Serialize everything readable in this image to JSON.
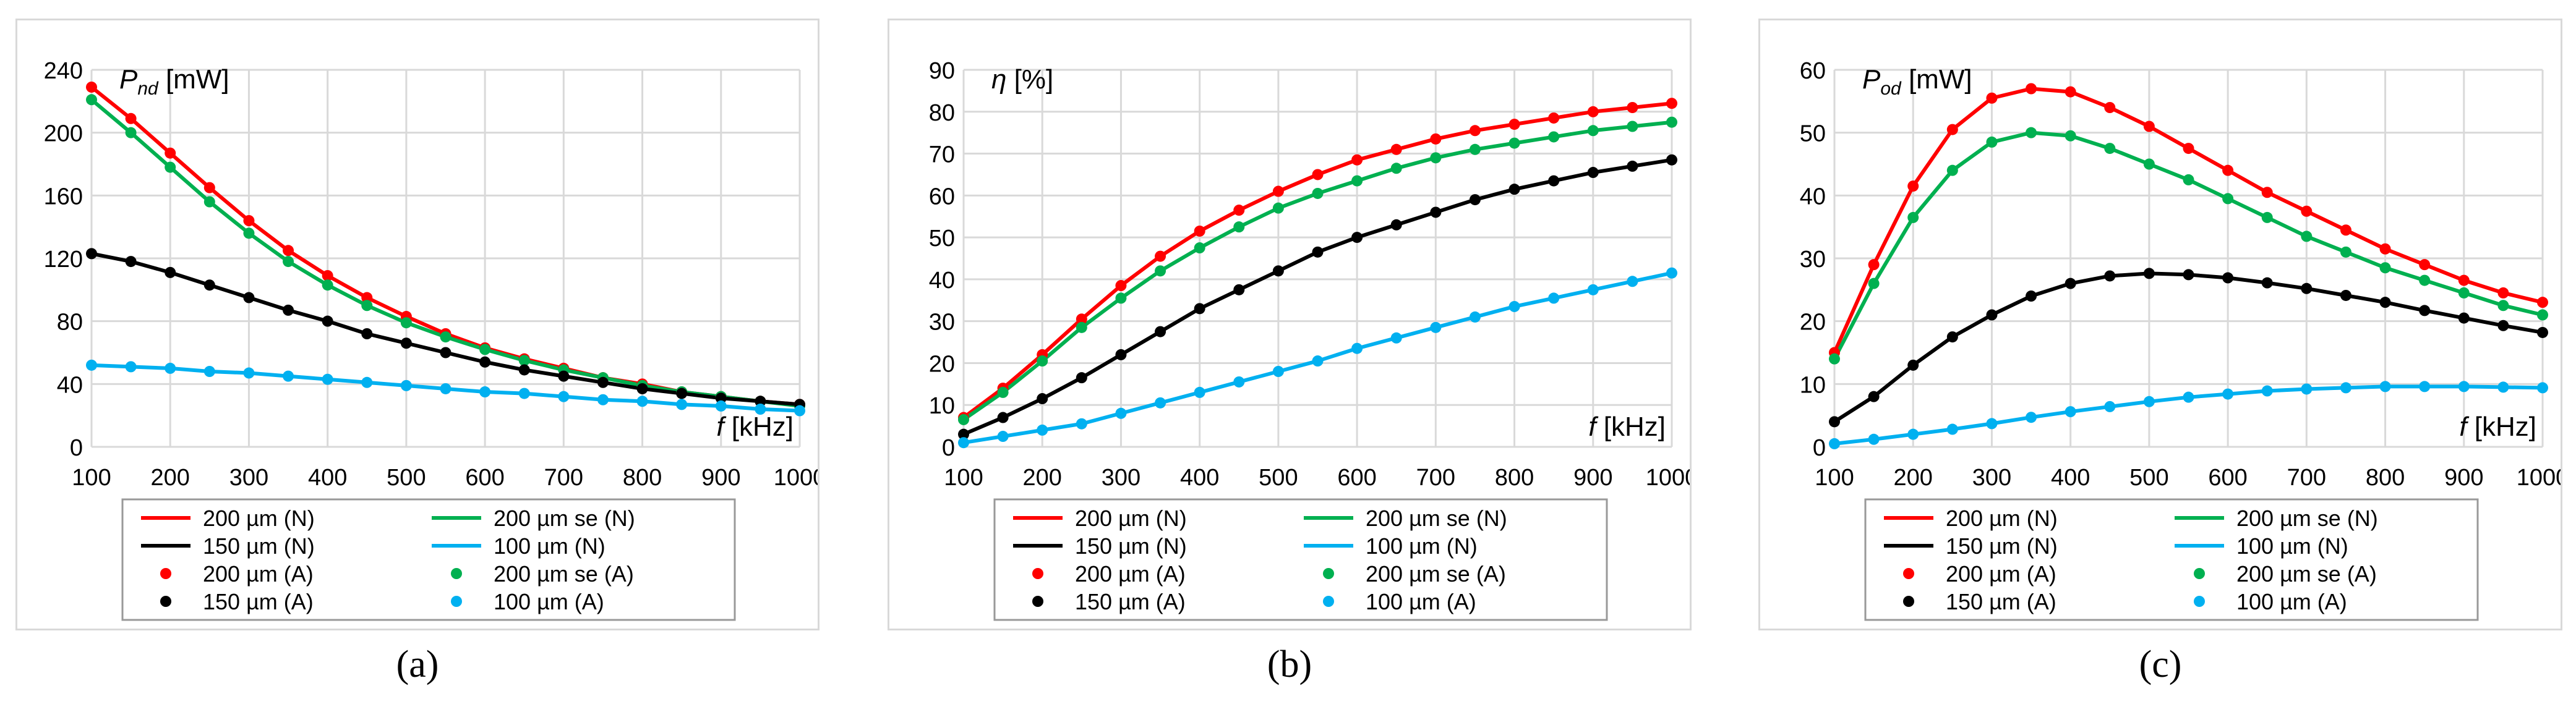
{
  "colors": {
    "red": "#ff0000",
    "green": "#00b050",
    "black": "#000000",
    "cyan": "#00b0f0",
    "grid": "#d9d9d9"
  },
  "panel_labels": [
    "(a)",
    "(b)",
    "(c)"
  ],
  "chart_data": [
    {
      "type": "line",
      "ylabel_main": "P",
      "ylabel_sub": "nd",
      "ylabel_unit": " [mW]",
      "xlabel_main": "f",
      "xlabel_unit": " [kHz]",
      "xlim": [
        100,
        1000
      ],
      "ylim": [
        0,
        240
      ],
      "xticks": [
        100,
        200,
        300,
        400,
        500,
        600,
        700,
        800,
        900,
        1000
      ],
      "yticks": [
        0,
        40,
        80,
        120,
        160,
        200,
        240
      ],
      "grid": true,
      "legend": "bottom",
      "x": [
        100,
        150,
        200,
        250,
        300,
        350,
        400,
        450,
        500,
        550,
        600,
        650,
        700,
        750,
        800,
        850,
        900,
        950,
        1000
      ],
      "series": [
        {
          "name": "200 µm (N)",
          "style": "line",
          "color": "red",
          "values": [
            229,
            209,
            187,
            165,
            144,
            125,
            109,
            95,
            83,
            72,
            63,
            56,
            50,
            44,
            40,
            35,
            32,
            29,
            27
          ]
        },
        {
          "name": "200 µm se (N)",
          "style": "line",
          "color": "green",
          "values": [
            221,
            200,
            178,
            156,
            136,
            118,
            103,
            90,
            79,
            70,
            62,
            55,
            49,
            44,
            39,
            35,
            32,
            29,
            26
          ]
        },
        {
          "name": "150 µm (N)",
          "style": "line",
          "color": "black",
          "values": [
            123,
            118,
            111,
            103,
            95,
            87,
            80,
            72,
            66,
            60,
            54,
            49,
            45,
            41,
            37,
            34,
            31,
            29,
            27
          ]
        },
        {
          "name": "100 µm (N)",
          "style": "line",
          "color": "cyan",
          "values": [
            52,
            51,
            50,
            48,
            47,
            45,
            43,
            41,
            39,
            37,
            35,
            34,
            32,
            30,
            29,
            27,
            26,
            24,
            23
          ]
        },
        {
          "name": "200 µm (A)",
          "style": "points",
          "color": "red",
          "values": [
            229,
            209,
            187,
            165,
            144,
            125,
            109,
            95,
            83,
            72,
            63,
            56,
            50,
            44,
            40,
            35,
            32,
            29,
            27
          ]
        },
        {
          "name": "200 µm se (A)",
          "style": "points",
          "color": "green",
          "values": [
            221,
            200,
            178,
            156,
            136,
            118,
            103,
            90,
            79,
            70,
            62,
            55,
            49,
            44,
            39,
            35,
            32,
            29,
            26
          ]
        },
        {
          "name": "150 µm (A)",
          "style": "points",
          "color": "black",
          "values": [
            123,
            118,
            111,
            103,
            95,
            87,
            80,
            72,
            66,
            60,
            54,
            49,
            45,
            41,
            37,
            34,
            31,
            29,
            27
          ]
        },
        {
          "name": "100 µm (A)",
          "style": "points",
          "color": "cyan",
          "values": [
            52,
            51,
            50,
            48,
            47,
            45,
            43,
            41,
            39,
            37,
            35,
            34,
            32,
            30,
            29,
            27,
            26,
            24,
            23
          ]
        }
      ]
    },
    {
      "type": "line",
      "ylabel_main": "η",
      "ylabel_sub": "",
      "ylabel_unit": " [%]",
      "xlabel_main": "f",
      "xlabel_unit": " [kHz]",
      "xlim": [
        100,
        1000
      ],
      "ylim": [
        0,
        90
      ],
      "xticks": [
        100,
        200,
        300,
        400,
        500,
        600,
        700,
        800,
        900,
        1000
      ],
      "yticks": [
        0,
        10,
        20,
        30,
        40,
        50,
        60,
        70,
        80,
        90
      ],
      "grid": true,
      "legend": "bottom",
      "x": [
        100,
        150,
        200,
        250,
        300,
        350,
        400,
        450,
        500,
        550,
        600,
        650,
        700,
        750,
        800,
        850,
        900,
        950,
        1000
      ],
      "series": [
        {
          "name": "200 µm (N)",
          "style": "line",
          "color": "red",
          "values": [
            7,
            14,
            22,
            30.5,
            38.5,
            45.5,
            51.5,
            56.5,
            61,
            65,
            68.5,
            71,
            73.5,
            75.5,
            77,
            78.5,
            80,
            81,
            82
          ]
        },
        {
          "name": "200 µm se (N)",
          "style": "line",
          "color": "green",
          "values": [
            6.5,
            13,
            20.5,
            28.5,
            35.5,
            42,
            47.5,
            52.5,
            57,
            60.5,
            63.5,
            66.5,
            69,
            71,
            72.5,
            74,
            75.5,
            76.5,
            77.5
          ]
        },
        {
          "name": "150 µm (N)",
          "style": "line",
          "color": "black",
          "values": [
            3,
            7,
            11.5,
            16.5,
            22,
            27.5,
            33,
            37.5,
            42,
            46.5,
            50,
            53,
            56,
            59,
            61.5,
            63.5,
            65.5,
            67,
            68.5
          ]
        },
        {
          "name": "100 µm (N)",
          "style": "line",
          "color": "cyan",
          "values": [
            1,
            2.5,
            4,
            5.5,
            8,
            10.5,
            13,
            15.5,
            18,
            20.5,
            23.5,
            26,
            28.5,
            31,
            33.5,
            35.5,
            37.5,
            39.5,
            41.5
          ]
        },
        {
          "name": "200 µm (A)",
          "style": "points",
          "color": "red",
          "values": [
            7,
            14,
            22,
            30.5,
            38.5,
            45.5,
            51.5,
            56.5,
            61,
            65,
            68.5,
            71,
            73.5,
            75.5,
            77,
            78.5,
            80,
            81,
            82
          ]
        },
        {
          "name": "200 µm se (A)",
          "style": "points",
          "color": "green",
          "values": [
            6.5,
            13,
            20.5,
            28.5,
            35.5,
            42,
            47.5,
            52.5,
            57,
            60.5,
            63.5,
            66.5,
            69,
            71,
            72.5,
            74,
            75.5,
            76.5,
            77.5
          ]
        },
        {
          "name": "150 µm (A)",
          "style": "points",
          "color": "black",
          "values": [
            3,
            7,
            11.5,
            16.5,
            22,
            27.5,
            33,
            37.5,
            42,
            46.5,
            50,
            53,
            56,
            59,
            61.5,
            63.5,
            65.5,
            67,
            68.5
          ]
        },
        {
          "name": "100 µm (A)",
          "style": "points",
          "color": "cyan",
          "values": [
            1,
            2.5,
            4,
            5.5,
            8,
            10.5,
            13,
            15.5,
            18,
            20.5,
            23.5,
            26,
            28.5,
            31,
            33.5,
            35.5,
            37.5,
            39.5,
            41.5
          ]
        }
      ]
    },
    {
      "type": "line",
      "ylabel_main": "P",
      "ylabel_sub": "od",
      "ylabel_unit": " [mW]",
      "xlabel_main": "f",
      "xlabel_unit": " [kHz]",
      "xlim": [
        100,
        1000
      ],
      "ylim": [
        0,
        60
      ],
      "xticks": [
        100,
        200,
        300,
        400,
        500,
        600,
        700,
        800,
        900,
        1000
      ],
      "yticks": [
        0,
        10,
        20,
        30,
        40,
        50,
        60
      ],
      "grid": true,
      "legend": "bottom",
      "x": [
        100,
        150,
        200,
        250,
        300,
        350,
        400,
        450,
        500,
        550,
        600,
        650,
        700,
        750,
        800,
        850,
        900,
        950,
        1000
      ],
      "series": [
        {
          "name": "200 µm (N)",
          "style": "line",
          "color": "red",
          "values": [
            15,
            29,
            41.5,
            50.5,
            55.5,
            57,
            56.5,
            54,
            51,
            47.5,
            44,
            40.5,
            37.5,
            34.5,
            31.5,
            29,
            26.5,
            24.5,
            23
          ]
        },
        {
          "name": "200 µm se (N)",
          "style": "line",
          "color": "green",
          "values": [
            14,
            26,
            36.5,
            44,
            48.5,
            50,
            49.5,
            47.5,
            45,
            42.5,
            39.5,
            36.5,
            33.5,
            31,
            28.5,
            26.5,
            24.5,
            22.5,
            21
          ]
        },
        {
          "name": "150 µm (N)",
          "style": "line",
          "color": "black",
          "values": [
            4,
            8,
            13,
            17.5,
            21,
            24,
            26,
            27.2,
            27.6,
            27.4,
            26.9,
            26.1,
            25.2,
            24.1,
            23,
            21.7,
            20.5,
            19.3,
            18.2
          ]
        },
        {
          "name": "100 µm (N)",
          "style": "line",
          "color": "cyan",
          "values": [
            0.5,
            1.2,
            2,
            2.8,
            3.7,
            4.7,
            5.6,
            6.4,
            7.2,
            7.9,
            8.4,
            8.9,
            9.2,
            9.4,
            9.6,
            9.6,
            9.6,
            9.5,
            9.4
          ]
        },
        {
          "name": "200 µm (A)",
          "style": "points",
          "color": "red",
          "values": [
            15,
            29,
            41.5,
            50.5,
            55.5,
            57,
            56.5,
            54,
            51,
            47.5,
            44,
            40.5,
            37.5,
            34.5,
            31.5,
            29,
            26.5,
            24.5,
            23
          ]
        },
        {
          "name": "200 µm se (A)",
          "style": "points",
          "color": "green",
          "values": [
            14,
            26,
            36.5,
            44,
            48.5,
            50,
            49.5,
            47.5,
            45,
            42.5,
            39.5,
            36.5,
            33.5,
            31,
            28.5,
            26.5,
            24.5,
            22.5,
            21
          ]
        },
        {
          "name": "150 µm (A)",
          "style": "points",
          "color": "black",
          "values": [
            4,
            8,
            13,
            17.5,
            21,
            24,
            26,
            27.2,
            27.6,
            27.4,
            26.9,
            26.1,
            25.2,
            24.1,
            23,
            21.7,
            20.5,
            19.3,
            18.2
          ]
        },
        {
          "name": "100 µm (A)",
          "style": "points",
          "color": "cyan",
          "values": [
            0.5,
            1.2,
            2,
            2.8,
            3.7,
            4.7,
            5.6,
            6.4,
            7.2,
            7.9,
            8.4,
            8.9,
            9.2,
            9.4,
            9.6,
            9.6,
            9.6,
            9.5,
            9.4
          ]
        }
      ]
    }
  ]
}
